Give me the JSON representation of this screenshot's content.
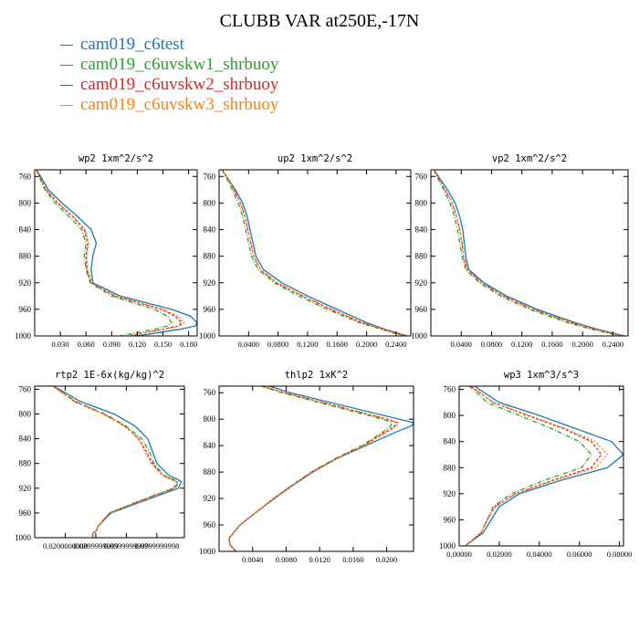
{
  "title": "CLUBB VAR at250E,-17N",
  "colors": [
    "#1f77b4",
    "#2ca02c",
    "#d62728",
    "#ff7f0e"
  ],
  "chart_data": [
    {
      "type": "line",
      "title": "wp2  1xm^2/s^2",
      "xlim": [
        0.0,
        0.19
      ],
      "ylim": [
        1000,
        750
      ],
      "xticks": [
        "0.030",
        "0.060",
        "0.090",
        "0.120",
        "0.150",
        "0.180"
      ],
      "xtick_values": [
        0.03,
        0.06,
        0.09,
        0.12,
        0.15,
        0.18
      ],
      "yticks": [
        760,
        800,
        840,
        880,
        920,
        960,
        1000
      ],
      "y": [
        750,
        760,
        780,
        800,
        820,
        840,
        860,
        880,
        900,
        920,
        940,
        950,
        960,
        970,
        980,
        985,
        990,
        1000
      ],
      "series": [
        {
          "name": "cam019_c6test",
          "values": [
            0.002,
            0.007,
            0.016,
            0.032,
            0.05,
            0.066,
            0.072,
            0.068,
            0.066,
            0.068,
            0.1,
            0.13,
            0.16,
            0.182,
            0.19,
            0.188,
            0.17,
            0.12
          ]
        },
        {
          "name": "cam019_c6uvskw1_shrbuoy",
          "values": [
            0.002,
            0.005,
            0.012,
            0.024,
            0.04,
            0.055,
            0.06,
            0.058,
            0.06,
            0.065,
            0.09,
            0.115,
            0.14,
            0.155,
            0.16,
            0.155,
            0.14,
            0.1
          ]
        },
        {
          "name": "cam019_c6uvskw2_shrbuoy",
          "values": [
            0.002,
            0.006,
            0.013,
            0.027,
            0.044,
            0.058,
            0.062,
            0.06,
            0.061,
            0.066,
            0.094,
            0.121,
            0.148,
            0.164,
            0.172,
            0.168,
            0.15,
            0.11
          ]
        },
        {
          "name": "cam019_c6uvskw3_shrbuoy",
          "values": [
            0.002,
            0.006,
            0.014,
            0.028,
            0.045,
            0.059,
            0.063,
            0.061,
            0.062,
            0.067,
            0.096,
            0.123,
            0.151,
            0.167,
            0.175,
            0.17,
            0.152,
            0.11
          ]
        }
      ]
    },
    {
      "type": "line",
      "title": "up2  1xm^2/s^2",
      "xlim": [
        0.0,
        0.26
      ],
      "ylim": [
        1000,
        750
      ],
      "xticks": [
        "0.0400",
        "0.0800",
        "0.1200",
        "0.1600",
        "0.2000",
        "0.2400"
      ],
      "xtick_values": [
        0.04,
        0.08,
        0.12,
        0.16,
        0.2,
        0.24
      ],
      "yticks": [
        760,
        800,
        840,
        880,
        920,
        960,
        1000
      ],
      "y": [
        750,
        760,
        780,
        800,
        820,
        840,
        860,
        880,
        900,
        920,
        940,
        960,
        980,
        990,
        1000
      ],
      "series": [
        {
          "name": "cam019_c6test",
          "values": [
            0.004,
            0.01,
            0.022,
            0.032,
            0.038,
            0.042,
            0.046,
            0.05,
            0.06,
            0.085,
            0.12,
            0.16,
            0.2,
            0.225,
            0.255
          ]
        },
        {
          "name": "cam019_c6uvskw1_shrbuoy",
          "values": [
            0.004,
            0.009,
            0.018,
            0.026,
            0.032,
            0.036,
            0.04,
            0.044,
            0.053,
            0.075,
            0.108,
            0.147,
            0.19,
            0.22,
            0.25
          ]
        },
        {
          "name": "cam019_c6uvskw2_shrbuoy",
          "values": [
            0.004,
            0.01,
            0.02,
            0.029,
            0.035,
            0.039,
            0.043,
            0.047,
            0.056,
            0.078,
            0.113,
            0.152,
            0.193,
            0.222,
            0.252
          ]
        },
        {
          "name": "cam019_c6uvskw3_shrbuoy",
          "values": [
            0.004,
            0.01,
            0.02,
            0.029,
            0.035,
            0.039,
            0.043,
            0.047,
            0.056,
            0.079,
            0.114,
            0.153,
            0.195,
            0.223,
            0.252
          ]
        }
      ]
    },
    {
      "type": "line",
      "title": "vp2  1xm^2/s^2",
      "xlim": [
        0.0,
        0.26
      ],
      "ylim": [
        1000,
        750
      ],
      "xticks": [
        "0.0400",
        "0.0800",
        "0.1200",
        "0.1600",
        "0.2000",
        "0.2400"
      ],
      "xtick_values": [
        0.04,
        0.08,
        0.12,
        0.16,
        0.2,
        0.24
      ],
      "yticks": [
        760,
        800,
        840,
        880,
        920,
        960,
        1000
      ],
      "y": [
        750,
        760,
        780,
        800,
        820,
        840,
        860,
        880,
        900,
        920,
        940,
        960,
        980,
        990,
        1000
      ],
      "series": [
        {
          "name": "cam019_c6test",
          "values": [
            0.004,
            0.01,
            0.022,
            0.032,
            0.038,
            0.042,
            0.044,
            0.046,
            0.05,
            0.07,
            0.1,
            0.14,
            0.19,
            0.22,
            0.255
          ]
        },
        {
          "name": "cam019_c6uvskw1_shrbuoy",
          "values": [
            0.004,
            0.008,
            0.017,
            0.025,
            0.031,
            0.035,
            0.038,
            0.041,
            0.046,
            0.064,
            0.092,
            0.13,
            0.18,
            0.212,
            0.25
          ]
        },
        {
          "name": "cam019_c6uvskw2_shrbuoy",
          "values": [
            0.004,
            0.009,
            0.019,
            0.028,
            0.034,
            0.038,
            0.041,
            0.043,
            0.048,
            0.067,
            0.096,
            0.135,
            0.185,
            0.216,
            0.252
          ]
        },
        {
          "name": "cam019_c6uvskw3_shrbuoy",
          "values": [
            0.004,
            0.009,
            0.019,
            0.028,
            0.034,
            0.038,
            0.041,
            0.043,
            0.048,
            0.067,
            0.096,
            0.135,
            0.186,
            0.217,
            0.252
          ]
        }
      ]
    },
    {
      "type": "line",
      "title": "rtp2  1E-6x(kg/kg)^2",
      "xlim": [
        0.0,
        0.098
      ],
      "ylim": [
        1000,
        755
      ],
      "xticks": [
        "0.0200000000",
        "0.0399999999",
        "0.0599999999",
        "0.0799999998"
      ],
      "xtick_values": [
        0.02,
        0.04,
        0.06,
        0.08
      ],
      "yticks": [
        760,
        800,
        840,
        880,
        920,
        960,
        1000
      ],
      "y": [
        755,
        760,
        780,
        800,
        820,
        840,
        860,
        880,
        900,
        905,
        910,
        920,
        940,
        960,
        980,
        990,
        993,
        1000
      ],
      "series": [
        {
          "name": "cam019_c6test",
          "values": [
            0.012,
            0.016,
            0.03,
            0.052,
            0.066,
            0.074,
            0.077,
            0.08,
            0.088,
            0.093,
            0.096,
            0.094,
            0.072,
            0.05,
            0.042,
            0.04,
            0.038,
            0.038
          ]
        },
        {
          "name": "cam019_c6uvskw1_shrbuoy",
          "values": [
            0.012,
            0.015,
            0.027,
            0.046,
            0.06,
            0.07,
            0.075,
            0.078,
            0.085,
            0.09,
            0.094,
            0.092,
            0.07,
            0.049,
            0.042,
            0.04,
            0.038,
            0.038
          ]
        },
        {
          "name": "cam019_c6uvskw2_shrbuoy",
          "values": [
            0.012,
            0.015,
            0.026,
            0.045,
            0.059,
            0.068,
            0.073,
            0.077,
            0.084,
            0.089,
            0.093,
            0.091,
            0.069,
            0.049,
            0.042,
            0.04,
            0.038,
            0.038
          ]
        },
        {
          "name": "cam019_c6uvskw3_shrbuoy",
          "values": [
            0.012,
            0.015,
            0.026,
            0.045,
            0.059,
            0.068,
            0.072,
            0.076,
            0.084,
            0.089,
            0.093,
            0.091,
            0.069,
            0.049,
            0.042,
            0.04,
            0.038,
            0.038
          ]
        }
      ]
    },
    {
      "type": "line",
      "title": "thlp2  1xK^2",
      "xlim": [
        0.0,
        0.0232
      ],
      "ylim": [
        1000,
        750
      ],
      "xticks": [
        "0.0040",
        "0.0080",
        "0.0120",
        "0.0160",
        "0.0200"
      ],
      "xtick_values": [
        0.004,
        0.008,
        0.012,
        0.016,
        0.02
      ],
      "yticks": [
        760,
        800,
        840,
        880,
        920,
        960,
        1000
      ],
      "y": [
        750,
        760,
        780,
        800,
        805,
        810,
        820,
        840,
        860,
        880,
        900,
        920,
        940,
        960,
        980,
        990,
        1000
      ],
      "series": [
        {
          "name": "cam019_c6test",
          "values": [
            0.006,
            0.0085,
            0.015,
            0.0215,
            0.0232,
            0.023,
            0.021,
            0.0175,
            0.014,
            0.0112,
            0.0088,
            0.0066,
            0.0045,
            0.0025,
            0.0012,
            0.0013,
            0.002
          ]
        },
        {
          "name": "cam019_c6uvskw1_shrbuoy",
          "values": [
            0.005,
            0.0075,
            0.0135,
            0.0195,
            0.0206,
            0.0205,
            0.0195,
            0.017,
            0.0138,
            0.011,
            0.0087,
            0.0065,
            0.0045,
            0.0025,
            0.0012,
            0.0013,
            0.002
          ]
        },
        {
          "name": "cam019_c6uvskw2_shrbuoy",
          "values": [
            0.0052,
            0.0078,
            0.014,
            0.02,
            0.0212,
            0.021,
            0.0198,
            0.0172,
            0.0139,
            0.0111,
            0.0087,
            0.0065,
            0.0045,
            0.0025,
            0.0012,
            0.0013,
            0.002
          ]
        },
        {
          "name": "cam019_c6uvskw3_shrbuoy",
          "values": [
            0.0052,
            0.0078,
            0.014,
            0.0202,
            0.0214,
            0.0212,
            0.02,
            0.0173,
            0.014,
            0.0111,
            0.0087,
            0.0065,
            0.0045,
            0.0025,
            0.0012,
            0.0013,
            0.002
          ]
        }
      ]
    },
    {
      "type": "line",
      "title": "wp3  1xm^3/s^3",
      "xlim": [
        0.0,
        0.082
      ],
      "ylim": [
        1000,
        755
      ],
      "xticks": [
        "0.00000",
        "0.02000",
        "0.04000",
        "0.06000",
        "0.08000"
      ],
      "xtick_values": [
        0.0,
        0.02,
        0.04,
        0.06,
        0.08
      ],
      "yticks": [
        760,
        800,
        840,
        880,
        920,
        960,
        1000
      ],
      "y": [
        755,
        760,
        780,
        800,
        820,
        840,
        860,
        880,
        900,
        920,
        940,
        960,
        980,
        1000
      ],
      "series": [
        {
          "name": "cam019_c6test",
          "values": [
            0.008,
            0.01,
            0.02,
            0.04,
            0.058,
            0.076,
            0.082,
            0.074,
            0.05,
            0.03,
            0.02,
            0.016,
            0.012,
            0.003
          ]
        },
        {
          "name": "cam019_c6uvskw1_shrbuoy",
          "values": [
            0.005,
            0.007,
            0.014,
            0.03,
            0.046,
            0.06,
            0.066,
            0.061,
            0.042,
            0.026,
            0.017,
            0.014,
            0.011,
            0.003
          ]
        },
        {
          "name": "cam019_c6uvskw2_shrbuoy",
          "values": [
            0.006,
            0.008,
            0.017,
            0.034,
            0.052,
            0.066,
            0.071,
            0.066,
            0.046,
            0.028,
            0.018,
            0.014,
            0.011,
            0.003
          ]
        },
        {
          "name": "cam019_c6uvskw3_shrbuoy",
          "values": [
            0.006,
            0.008,
            0.017,
            0.035,
            0.053,
            0.068,
            0.074,
            0.068,
            0.047,
            0.028,
            0.018,
            0.014,
            0.011,
            0.003
          ]
        }
      ]
    }
  ]
}
